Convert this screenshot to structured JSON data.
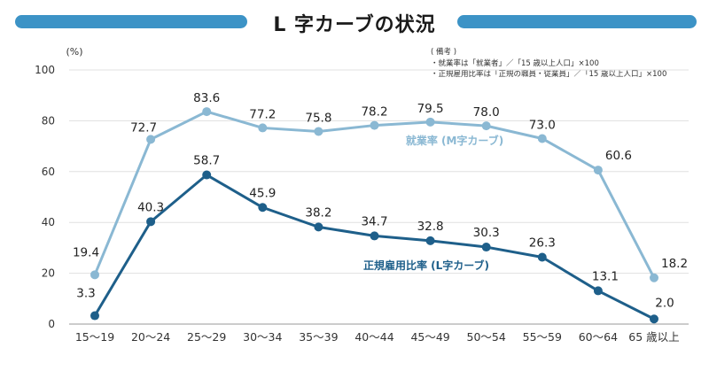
{
  "title": "L 字カーブの状況",
  "notes": {
    "heading": "( 備考 )",
    "lines": [
      "・就業率は「就業者」／「15 歳以上人口」×100",
      "・正規雇用比率は「正規の職員・従業員」／「15 歳以上人口」×100"
    ]
  },
  "colors": {
    "title_bar": "#3c93c6",
    "series_m": "#8ab8d3",
    "series_l": "#1e5f8a"
  },
  "chart_data": {
    "type": "line",
    "title": "L 字カーブの状況",
    "ylabel": "(%)",
    "xlabel": "",
    "ylim": [
      0,
      100
    ],
    "yticks": [
      0,
      20,
      40,
      60,
      80,
      100
    ],
    "grid": true,
    "categories": [
      "15〜19",
      "20〜24",
      "25〜29",
      "30〜34",
      "35〜39",
      "40〜44",
      "45〜49",
      "50〜54",
      "55〜59",
      "60〜64",
      "65 歳以上"
    ],
    "series": [
      {
        "name": "就業率 (M字カーブ)",
        "values": [
          19.4,
          72.7,
          83.6,
          77.2,
          75.8,
          78.2,
          79.5,
          78.0,
          73.0,
          60.6,
          18.2
        ],
        "labels": [
          "19.4",
          "72.7",
          "83.6",
          "77.2",
          "75.8",
          "78.2",
          "79.5",
          "78.0",
          "73.0",
          "60.6",
          "18.2"
        ]
      },
      {
        "name": "正規雇用比率 (L字カーブ)",
        "values": [
          3.3,
          40.3,
          58.7,
          45.9,
          38.2,
          34.7,
          32.8,
          30.3,
          26.3,
          13.1,
          2.0
        ],
        "labels": [
          "3.3",
          "40.3",
          "58.7",
          "45.9",
          "38.2",
          "34.7",
          "32.8",
          "30.3",
          "26.3",
          "13.1",
          "2.0"
        ]
      }
    ]
  }
}
